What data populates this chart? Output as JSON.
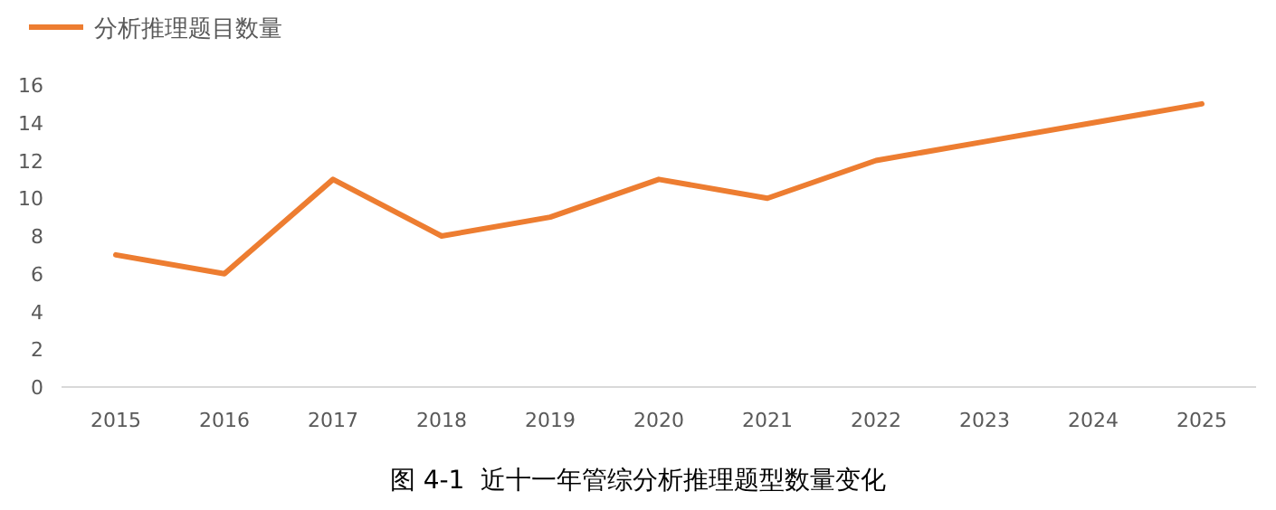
{
  "chart_data": {
    "type": "line",
    "categories": [
      "2015",
      "2016",
      "2017",
      "2018",
      "2019",
      "2020",
      "2021",
      "2022",
      "2023",
      "2024",
      "2025"
    ],
    "series": [
      {
        "name": "分析推理题目数量",
        "color": "#ed7d31",
        "values": [
          7,
          6,
          11,
          8,
          9,
          11,
          10,
          12,
          13,
          14,
          15
        ]
      }
    ],
    "ylim": [
      0,
      16
    ],
    "yticks": [
      0,
      2,
      4,
      6,
      8,
      10,
      12,
      14,
      16
    ],
    "grid": false,
    "legend": "top left",
    "marker": "none",
    "line_style": "solid",
    "annotations": [
      "图 4-1  近十一年管综分析推理题型数量变化"
    ]
  }
}
